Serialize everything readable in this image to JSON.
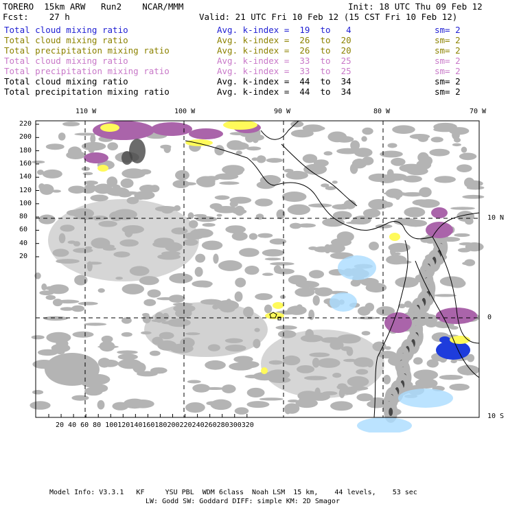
{
  "header": {
    "title_left": "TORERO  15km ARW   Run2    NCAR/MMM",
    "init": "Init: 18 UTC Thu 09 Feb 12",
    "fcst": "Fcst:    27 h",
    "valid": "Valid: 21 UTC Fri 10 Feb 12 (15 CST Fri 10 Feb 12)"
  },
  "fields": [
    {
      "name": "Total cloud mixing ratio",
      "avg": "Avg. k-index =  19  to   4",
      "sm": "sm= 2",
      "color": "#1e1ed2"
    },
    {
      "name": "Total cloud mixing ratio",
      "avg": "Avg. k-index =  26  to  20",
      "sm": "sm= 2",
      "color": "#8c8200"
    },
    {
      "name": "Total precipitation mixing ratio",
      "avg": "Avg. k-index =  26  to  20",
      "sm": "sm= 2",
      "color": "#8c8200"
    },
    {
      "name": "Total cloud mixing ratio",
      "avg": "Avg. k-index =  33  to  25",
      "sm": "sm= 2",
      "color": "#c878c8"
    },
    {
      "name": "Total precipitation mixing ratio",
      "avg": "Avg. k-index =  33  to  25",
      "sm": "sm= 2",
      "color": "#c878c8"
    },
    {
      "name": "Total cloud mixing ratio",
      "avg": "Avg. k-index =  44  to  34",
      "sm": "sm= 2",
      "color": "#000000"
    },
    {
      "name": "Total precipitation mixing ratio",
      "avg": "Avg. k-index =  44  to  34",
      "sm": "sm= 2",
      "color": "#000000"
    }
  ],
  "map": {
    "lon_labels": [
      "110 W",
      "100 W",
      "90 W",
      "80 W",
      "70 W"
    ],
    "lat_labels": [
      "10 N",
      "0",
      "10 S"
    ],
    "y_ticks": [
      "220",
      "200",
      "180",
      "160",
      "140",
      "120",
      "100",
      "80",
      "60",
      "40",
      "20"
    ],
    "x_ticks": [
      "20",
      "40",
      "60",
      "80",
      "100",
      "120",
      "140",
      "160",
      "180",
      "200",
      "220",
      "240",
      "260",
      "280",
      "300",
      "320"
    ],
    "colors": {
      "gray": "#b4b4b4",
      "dark": "#464646",
      "yellow": "#fffa5a",
      "purple": "#aa64aa",
      "blue": "#1e3cdc",
      "lightblue": "#aadcff"
    }
  },
  "footer": {
    "line1": "Model Info: V3.3.1   KF     YSU PBL  WDM 6class  Noah LSM  15 km,    44 levels,    53 sec",
    "line2": "LW: Godd SW: Goddard DIFF: simple KM: 2D Smagor"
  }
}
